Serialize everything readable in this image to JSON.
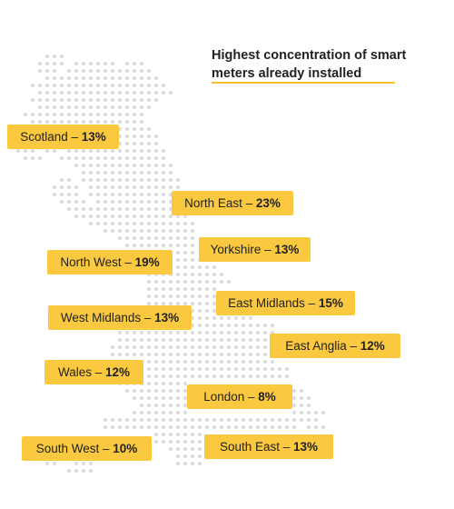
{
  "title": {
    "line1": "Highest concentration of smart",
    "line2": "meters already installed"
  },
  "colors": {
    "label_fill": "#fbc940",
    "accent_rule": "#f5c42c",
    "map_dots": "#dcdcdc",
    "text": "#222222"
  },
  "regions": [
    {
      "name": "Scotland",
      "separator": " – ",
      "percent": "13%"
    },
    {
      "name": "North East",
      "separator": " – ",
      "percent": "23%"
    },
    {
      "name": "Yorkshire",
      "separator": " – ",
      "percent": "13%"
    },
    {
      "name": "North West",
      "separator": " – ",
      "percent": "19%"
    },
    {
      "name": "East Midlands",
      "separator": " – ",
      "percent": "15%"
    },
    {
      "name": "West Midlands",
      "separator": " – ",
      "percent": "13%"
    },
    {
      "name": "East Anglia",
      "separator": " – ",
      "percent": "12%"
    },
    {
      "name": "Wales",
      "separator": " – ",
      "percent": "12%"
    },
    {
      "name": "London",
      "separator": " – ",
      "percent": "8%"
    },
    {
      "name": "South West",
      "separator": "  – ",
      "percent": "10%"
    },
    {
      "name": "South East",
      "separator": "  – ",
      "percent": "13%"
    }
  ]
}
